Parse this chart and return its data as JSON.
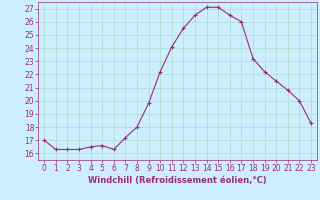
{
  "x": [
    0,
    1,
    2,
    3,
    4,
    5,
    6,
    7,
    8,
    9,
    10,
    11,
    12,
    13,
    14,
    15,
    16,
    17,
    18,
    19,
    20,
    21,
    22,
    23
  ],
  "y": [
    17.0,
    16.3,
    16.3,
    16.3,
    16.5,
    16.6,
    16.3,
    17.2,
    18.0,
    19.8,
    22.2,
    24.1,
    25.5,
    26.5,
    27.1,
    27.1,
    26.5,
    26.0,
    23.2,
    22.2,
    21.5,
    20.8,
    20.0,
    18.3
  ],
  "line_color": "#9b2d7a",
  "marker": "+",
  "bg_color": "#cceeff",
  "grid_color": "#aaddcc",
  "xlabel": "Windchill (Refroidissement éolien,°C)",
  "xlim": [
    -0.5,
    23.5
  ],
  "ylim": [
    15.5,
    27.5
  ],
  "yticks": [
    16,
    17,
    18,
    19,
    20,
    21,
    22,
    23,
    24,
    25,
    26,
    27
  ],
  "xticks": [
    0,
    1,
    2,
    3,
    4,
    5,
    6,
    7,
    8,
    9,
    10,
    11,
    12,
    13,
    14,
    15,
    16,
    17,
    18,
    19,
    20,
    21,
    22,
    23
  ],
  "tick_color": "#9b2d7a",
  "label_fontsize": 6.0,
  "tick_fontsize": 5.5
}
